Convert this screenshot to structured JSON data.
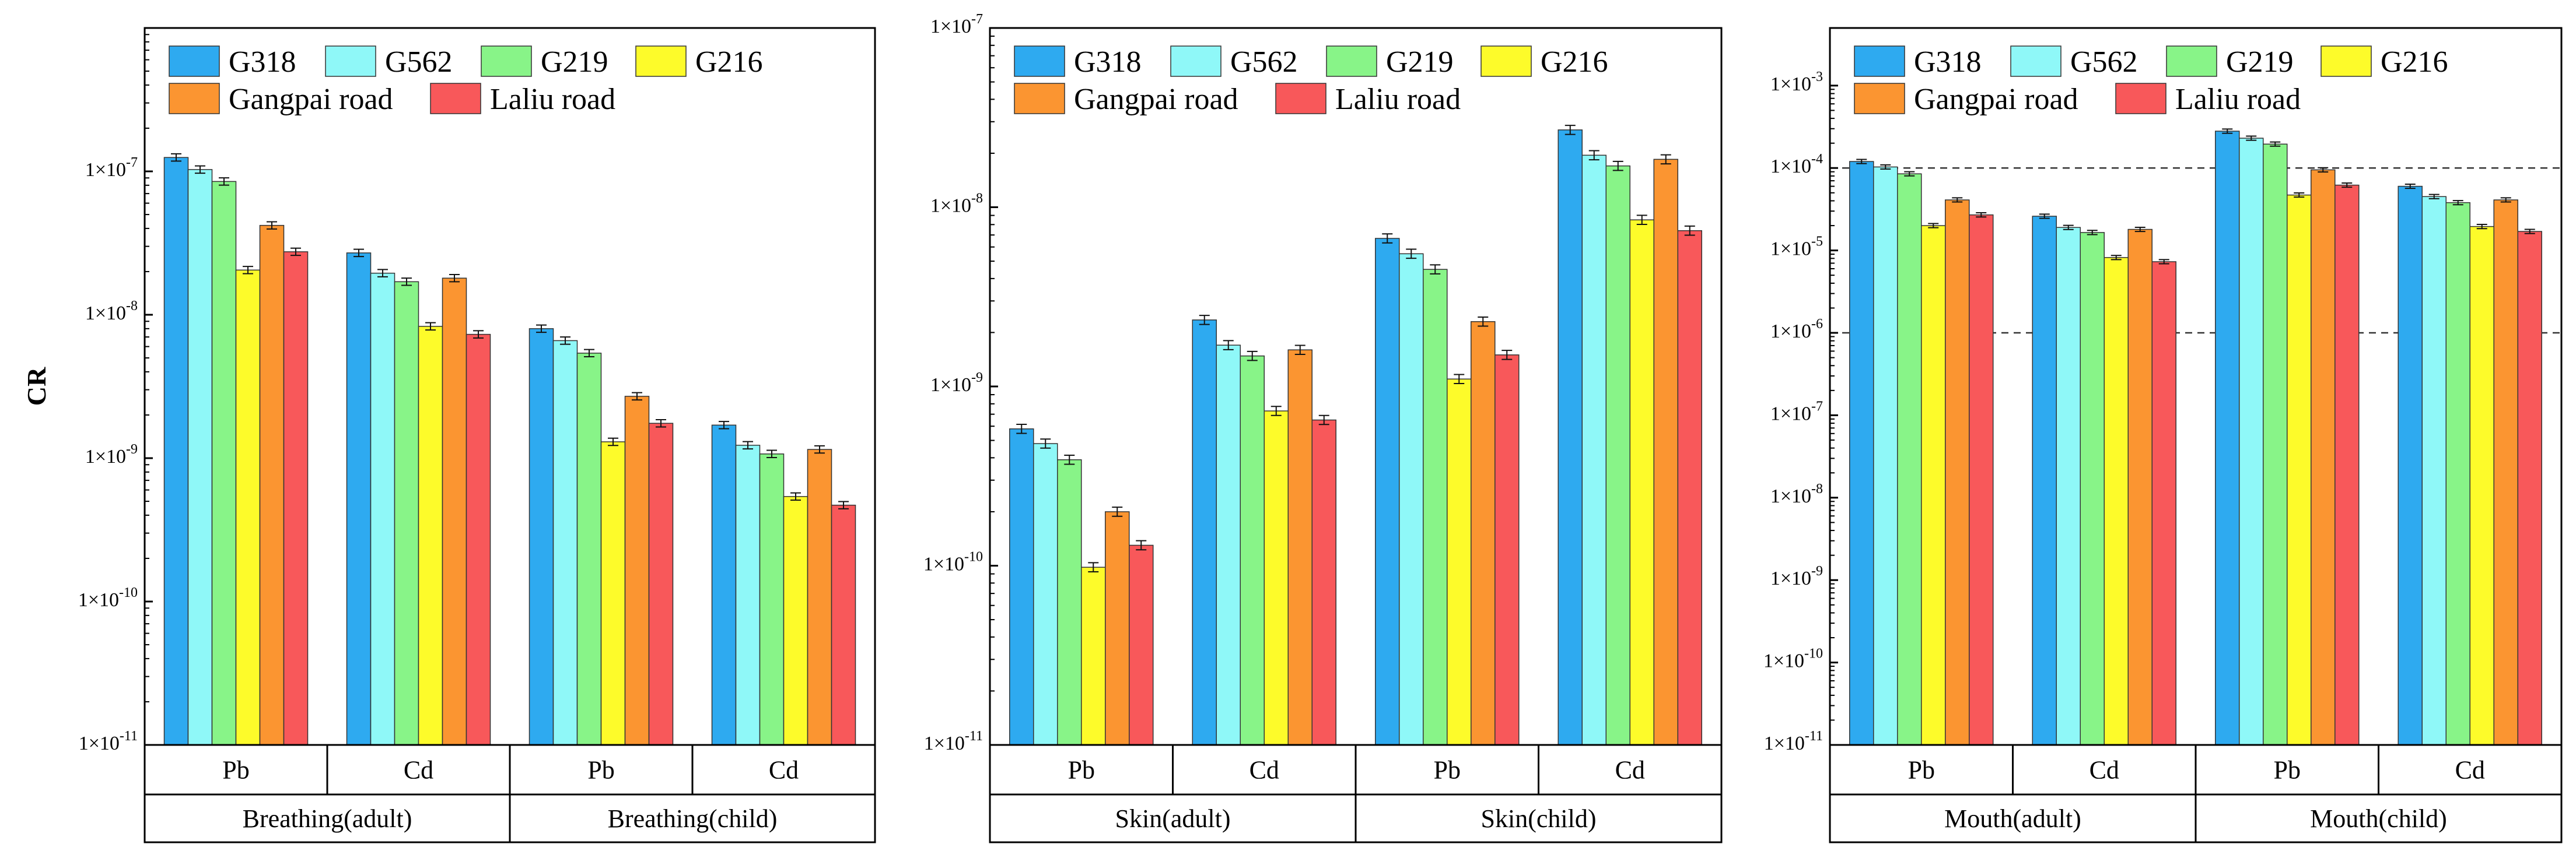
{
  "chart_data": [
    {
      "type": "bar",
      "yscale": "log",
      "ylabel": "CR",
      "ylim": [
        1e-11,
        1e-06
      ],
      "ticks": [
        1e-11,
        1e-10,
        1e-09,
        1e-08,
        1e-07
      ],
      "tick_labels": [
        "1×10^-11",
        "1×10^-10",
        "1×10^-9",
        "1×10^-8",
        "1×10^-7"
      ],
      "categories": [
        "Pb",
        "Cd",
        "Pb",
        "Cd"
      ],
      "groups": [
        "Breathing(adult)",
        "Breathing(child)"
      ],
      "legend": "top-left",
      "series": [
        {
          "name": "G318",
          "color": "#2eaaf0",
          "values": [
            1.25e-07,
            2.7e-08,
            8e-09,
            1.7e-09
          ]
        },
        {
          "name": "G562",
          "color": "#8ff8f8",
          "values": [
            1.03e-07,
            1.95e-08,
            6.6e-09,
            1.23e-09
          ]
        },
        {
          "name": "G219",
          "color": "#88f488",
          "values": [
            8.5e-08,
            1.7e-08,
            5.4e-09,
            1.07e-09
          ]
        },
        {
          "name": "G216",
          "color": "#fdfb2a",
          "values": [
            2.05e-08,
            8.3e-09,
            1.3e-09,
            5.4e-10
          ]
        },
        {
          "name": "Gangpai road",
          "color": "#fb9531",
          "values": [
            4.2e-08,
            1.8e-08,
            2.7e-09,
            1.15e-09
          ]
        },
        {
          "name": "Laliu road",
          "color": "#f8585a",
          "values": [
            2.75e-08,
            7.3e-09,
            1.75e-09,
            4.7e-10
          ]
        }
      ]
    },
    {
      "type": "bar",
      "yscale": "log",
      "ylabel": "",
      "ylim": [
        1e-11,
        1e-07
      ],
      "ticks": [
        1e-11,
        1e-10,
        1e-09,
        1e-08,
        1e-07
      ],
      "tick_labels": [
        "1×10^-11",
        "1×10^-10",
        "1×10^-9",
        "1×10^-8",
        "1×10^-7"
      ],
      "categories": [
        "Pb",
        "Cd",
        "Pb",
        "Cd"
      ],
      "groups": [
        "Skin(adult)",
        "Skin(child)"
      ],
      "legend": "top-left",
      "series": [
        {
          "name": "G318",
          "color": "#2eaaf0",
          "values": [
            5.8e-10,
            2.35e-09,
            6.7e-09,
            2.7e-08
          ]
        },
        {
          "name": "G562",
          "color": "#8ff8f8",
          "values": [
            4.8e-10,
            1.7e-09,
            5.5e-09,
            1.95e-08
          ]
        },
        {
          "name": "G219",
          "color": "#88f488",
          "values": [
            3.9e-10,
            1.48e-09,
            4.5e-09,
            1.7e-08
          ]
        },
        {
          "name": "G216",
          "color": "#fdfb2a",
          "values": [
            9.8e-11,
            7.3e-10,
            1.1e-09,
            8.5e-09
          ]
        },
        {
          "name": "Gangpai road",
          "color": "#fb9531",
          "values": [
            2e-10,
            1.6e-09,
            2.3e-09,
            1.85e-08
          ]
        },
        {
          "name": "Laliu road",
          "color": "#f8585a",
          "values": [
            1.3e-10,
            6.5e-10,
            1.5e-09,
            7.4e-09
          ]
        }
      ]
    },
    {
      "type": "bar",
      "yscale": "log",
      "ylabel": "",
      "ylim": [
        1e-11,
        0.005
      ],
      "ticks": [
        1e-11,
        1e-10,
        1e-09,
        1e-08,
        1e-07,
        1e-06,
        1e-05,
        0.0001,
        0.001
      ],
      "tick_labels": [
        "1×10^-11",
        "1×10^-10",
        "1×10^-9",
        "1×10^-8",
        "1×10^-7",
        "1×10^-6",
        "1×10^-5",
        "1×10^-4",
        "1×10^-3"
      ],
      "reference_lines": [
        0.0001,
        1e-06
      ],
      "categories": [
        "Pb",
        "Cd",
        "Pb",
        "Cd"
      ],
      "groups": [
        "Mouth(adult)",
        "Mouth(child)"
      ],
      "legend": "top-left",
      "series": [
        {
          "name": "G318",
          "color": "#2eaaf0",
          "values": [
            0.00012,
            2.6e-05,
            0.00028,
            6e-05
          ]
        },
        {
          "name": "G562",
          "color": "#8ff8f8",
          "values": [
            0.000103,
            1.9e-05,
            0.00023,
            4.5e-05
          ]
        },
        {
          "name": "G219",
          "color": "#88f488",
          "values": [
            8.5e-05,
            1.65e-05,
            0.000195,
            3.8e-05
          ]
        },
        {
          "name": "G216",
          "color": "#fdfb2a",
          "values": [
            2e-05,
            8.2e-06,
            4.7e-05,
            1.95e-05
          ]
        },
        {
          "name": "Gangpai road",
          "color": "#fb9531",
          "values": [
            4.1e-05,
            1.8e-05,
            9.5e-05,
            4.1e-05
          ]
        },
        {
          "name": "Laliu road",
          "color": "#f8585a",
          "values": [
            2.7e-05,
            7.3e-06,
            6.2e-05,
            1.7e-05
          ]
        }
      ]
    }
  ]
}
